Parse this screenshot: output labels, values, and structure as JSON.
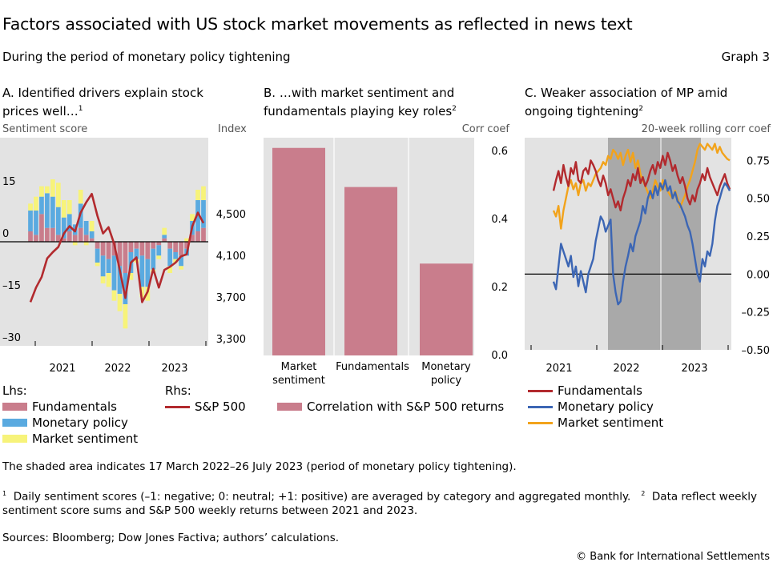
{
  "header": {
    "title": "Factors associated with US stock market movements as reflected in news text",
    "subtitle": "During the period of monetary policy tightening",
    "graph_number": "Graph 3"
  },
  "colors": {
    "fundamentals": "#c97d8c",
    "monetary_policy": "#5aaae0",
    "market_sentiment": "#f7f37a",
    "sp500": "#b22a2e",
    "mp_line": "#3c66b4",
    "fund_line": "#b22a2e",
    "sent_line": "#f2a31b",
    "panel_bg": "#e3e3e3",
    "shade": "#a9a9a9"
  },
  "panels": {
    "a": {
      "title": "A. Identified drivers explain stock prices well…",
      "title_sup": "1",
      "left_axis_label": "Sentiment score",
      "right_axis_label": "Index",
      "legend_lhs": "Lhs:",
      "legend_rhs": "Rhs:",
      "legend_fundamentals": "Fundamentals",
      "legend_monetary": "Monetary policy",
      "legend_sentiment": "Market sentiment",
      "legend_sp500": "S&P 500"
    },
    "b": {
      "title": "B. …with market sentiment and fundamentals playing key roles",
      "title_sup": "2",
      "right_axis_label": "Corr coef",
      "legend_label": "Correlation with S&P 500 returns"
    },
    "c": {
      "title": "C. Weaker association of MP amid ongoing tightening",
      "title_sup": "2",
      "right_axis_label": "20-week rolling corr coef",
      "legend_fundamentals": "Fundamentals",
      "legend_monetary": "Monetary policy",
      "legend_sentiment": "Market sentiment"
    }
  },
  "chart_data": [
    {
      "type": "bar",
      "stacked": true,
      "title": "A. Identified drivers explain stock prices well…",
      "xlabel": "",
      "ylabel": "Sentiment score",
      "y2label": "Index",
      "ylim": [
        -30,
        30
      ],
      "y2lim": [
        3300,
        5300
      ],
      "yticks": [
        -30,
        -15,
        0,
        15
      ],
      "y2ticks": [
        3300,
        3700,
        4100,
        4500
      ],
      "xticks": [
        "2021",
        "2022",
        "2023"
      ],
      "categories": [
        "Jan-2021",
        "Feb-2021",
        "Mar-2021",
        "Apr-2021",
        "May-2021",
        "Jun-2021",
        "Jul-2021",
        "Aug-2021",
        "Sep-2021",
        "Oct-2021",
        "Nov-2021",
        "Dec-2021",
        "Jan-2022",
        "Feb-2022",
        "Mar-2022",
        "Apr-2022",
        "May-2022",
        "Jun-2022",
        "Jul-2022",
        "Aug-2022",
        "Sep-2022",
        "Oct-2022",
        "Nov-2022",
        "Dec-2022",
        "Jan-2023",
        "Feb-2023",
        "Mar-2023",
        "Apr-2023",
        "May-2023",
        "Jun-2023",
        "Jul-2023",
        "Aug-2023"
      ],
      "series": [
        {
          "name": "Fundamentals",
          "axis": "lhs",
          "values": [
            3,
            2,
            8,
            4,
            4,
            2,
            1,
            3,
            2,
            4,
            2,
            1,
            -2,
            -4,
            -5,
            -4,
            -7,
            -9,
            -3,
            -2,
            -4,
            -5,
            -2,
            -1,
            1,
            -2,
            -3,
            -4,
            -2,
            2,
            3,
            4
          ]
        },
        {
          "name": "Monetary policy",
          "axis": "lhs",
          "values": [
            6,
            7,
            5,
            10,
            9,
            8,
            6,
            5,
            3,
            7,
            4,
            2,
            -4,
            -6,
            -4,
            -10,
            -8,
            -9,
            -6,
            -3,
            -9,
            -8,
            -6,
            -3,
            1,
            -5,
            -2,
            -3,
            -2,
            4,
            9,
            8
          ]
        },
        {
          "name": "Market sentiment",
          "axis": "lhs",
          "values": [
            2,
            4,
            3,
            2,
            5,
            7,
            5,
            4,
            -1,
            4,
            -1,
            3,
            -1,
            -2,
            -4,
            -3,
            -5,
            -7,
            -2,
            -1,
            -3,
            -4,
            -1,
            -1,
            2,
            -2,
            -1,
            -1,
            1,
            2,
            3,
            4
          ]
        },
        {
          "name": "S&P 500",
          "axis": "rhs",
          "type": "line",
          "values": [
            3720,
            3860,
            3960,
            4140,
            4200,
            4250,
            4380,
            4450,
            4400,
            4580,
            4680,
            4760,
            4550,
            4380,
            4440,
            4280,
            4030,
            3760,
            4100,
            4150,
            3720,
            3820,
            4040,
            3860,
            4030,
            4060,
            4100,
            4160,
            4180,
            4450,
            4580,
            4480
          ]
        }
      ]
    },
    {
      "type": "bar",
      "title": "B. …with market sentiment and fundamentals playing key roles",
      "ylabel": "Corr coef",
      "ylim": [
        0,
        0.64
      ],
      "yticks": [
        0.0,
        0.2,
        0.4,
        0.6
      ],
      "ytick_labels": [
        "0.0",
        "0.2",
        "0.4",
        "0.6"
      ],
      "categories": [
        "Market sentiment",
        "Fundamentals",
        "Monetary policy"
      ],
      "series": [
        {
          "name": "Correlation with S&P 500 returns",
          "values": [
            0.61,
            0.495,
            0.27
          ]
        }
      ]
    },
    {
      "type": "line",
      "title": "C. Weaker association of MP amid ongoing tightening",
      "ylabel": "20-week rolling corr coef",
      "ylim": [
        -0.5,
        0.9
      ],
      "yticks": [
        -0.5,
        -0.25,
        0.0,
        0.25,
        0.5,
        0.75
      ],
      "ytick_labels": [
        "–0.50",
        "–0.25",
        "0.00",
        "0.25",
        "0.50",
        "0.75"
      ],
      "xticks": [
        "2021",
        "2022",
        "2023"
      ],
      "shaded_period": "17 March 2022–26 July 2023",
      "x_weeks_start": "2021-05",
      "series": [
        {
          "name": "Fundamentals",
          "values": [
            0.55,
            0.62,
            0.68,
            0.6,
            0.72,
            0.64,
            0.58,
            0.7,
            0.66,
            0.74,
            0.62,
            0.6,
            0.68,
            0.7,
            0.66,
            0.75,
            0.72,
            0.68,
            0.62,
            0.58,
            0.65,
            0.6,
            0.52,
            0.56,
            0.5,
            0.44,
            0.48,
            0.42,
            0.5,
            0.55,
            0.62,
            0.58,
            0.66,
            0.62,
            0.7,
            0.6,
            0.64,
            0.58,
            0.62,
            0.68,
            0.72,
            0.66,
            0.74,
            0.7,
            0.78,
            0.72,
            0.8,
            0.75,
            0.68,
            0.72,
            0.65,
            0.6,
            0.64,
            0.58,
            0.5,
            0.46,
            0.52,
            0.48,
            0.56,
            0.6,
            0.66,
            0.62,
            0.7,
            0.64,
            0.6,
            0.56,
            0.52,
            0.58,
            0.62,
            0.66,
            0.6,
            0.56
          ]
        },
        {
          "name": "Monetary policy",
          "values": [
            -0.05,
            -0.1,
            0.05,
            0.2,
            0.15,
            0.1,
            0.05,
            0.12,
            -0.02,
            0.05,
            -0.08,
            0.02,
            -0.05,
            -0.12,
            0.0,
            0.05,
            0.1,
            0.22,
            0.3,
            0.38,
            0.35,
            0.28,
            0.32,
            0.36,
            0.0,
            -0.12,
            -0.2,
            -0.18,
            -0.05,
            0.05,
            0.12,
            0.2,
            0.15,
            0.25,
            0.3,
            0.35,
            0.45,
            0.4,
            0.5,
            0.55,
            0.5,
            0.58,
            0.52,
            0.6,
            0.56,
            0.62,
            0.55,
            0.58,
            0.5,
            0.54,
            0.48,
            0.46,
            0.42,
            0.38,
            0.32,
            0.28,
            0.2,
            0.1,
            0.0,
            -0.05,
            0.1,
            0.05,
            0.15,
            0.12,
            0.2,
            0.35,
            0.45,
            0.5,
            0.56,
            0.6,
            0.58,
            0.55
          ]
        },
        {
          "name": "Market sentiment",
          "values": [
            0.42,
            0.38,
            0.45,
            0.3,
            0.42,
            0.5,
            0.58,
            0.62,
            0.56,
            0.6,
            0.52,
            0.6,
            0.62,
            0.55,
            0.6,
            0.58,
            0.62,
            0.66,
            0.68,
            0.7,
            0.74,
            0.72,
            0.78,
            0.76,
            0.82,
            0.8,
            0.76,
            0.8,
            0.72,
            0.78,
            0.82,
            0.74,
            0.8,
            0.7,
            0.75,
            0.66,
            0.62,
            0.58,
            0.54,
            0.5,
            0.55,
            0.62,
            0.58,
            0.55,
            0.62,
            0.58,
            0.55,
            0.52,
            0.5,
            0.55,
            0.5,
            0.44,
            0.48,
            0.52,
            0.58,
            0.62,
            0.68,
            0.74,
            0.82,
            0.86,
            0.84,
            0.82,
            0.86,
            0.84,
            0.82,
            0.86,
            0.8,
            0.84,
            0.8,
            0.78,
            0.76,
            0.75
          ]
        }
      ]
    }
  ],
  "notes": {
    "shading": "The shaded area indicates 17 March 2022–26 July 2023 (period of monetary policy tightening).",
    "footnote1_mark": "1",
    "footnote1": "Daily sentiment scores (–1: negative; 0: neutral; +1: positive) are averaged by category and aggregated monthly.",
    "footnote2_mark": "2",
    "footnote2_a": "Data reflect weekly",
    "footnote2_b": "sentiment score sums and S&P 500 weekly returns between 2021 and 2023.",
    "sources": "Sources: Bloomberg; Dow Jones Factiva; authors’ calculations.",
    "copyright": "© Bank for International Settlements"
  }
}
